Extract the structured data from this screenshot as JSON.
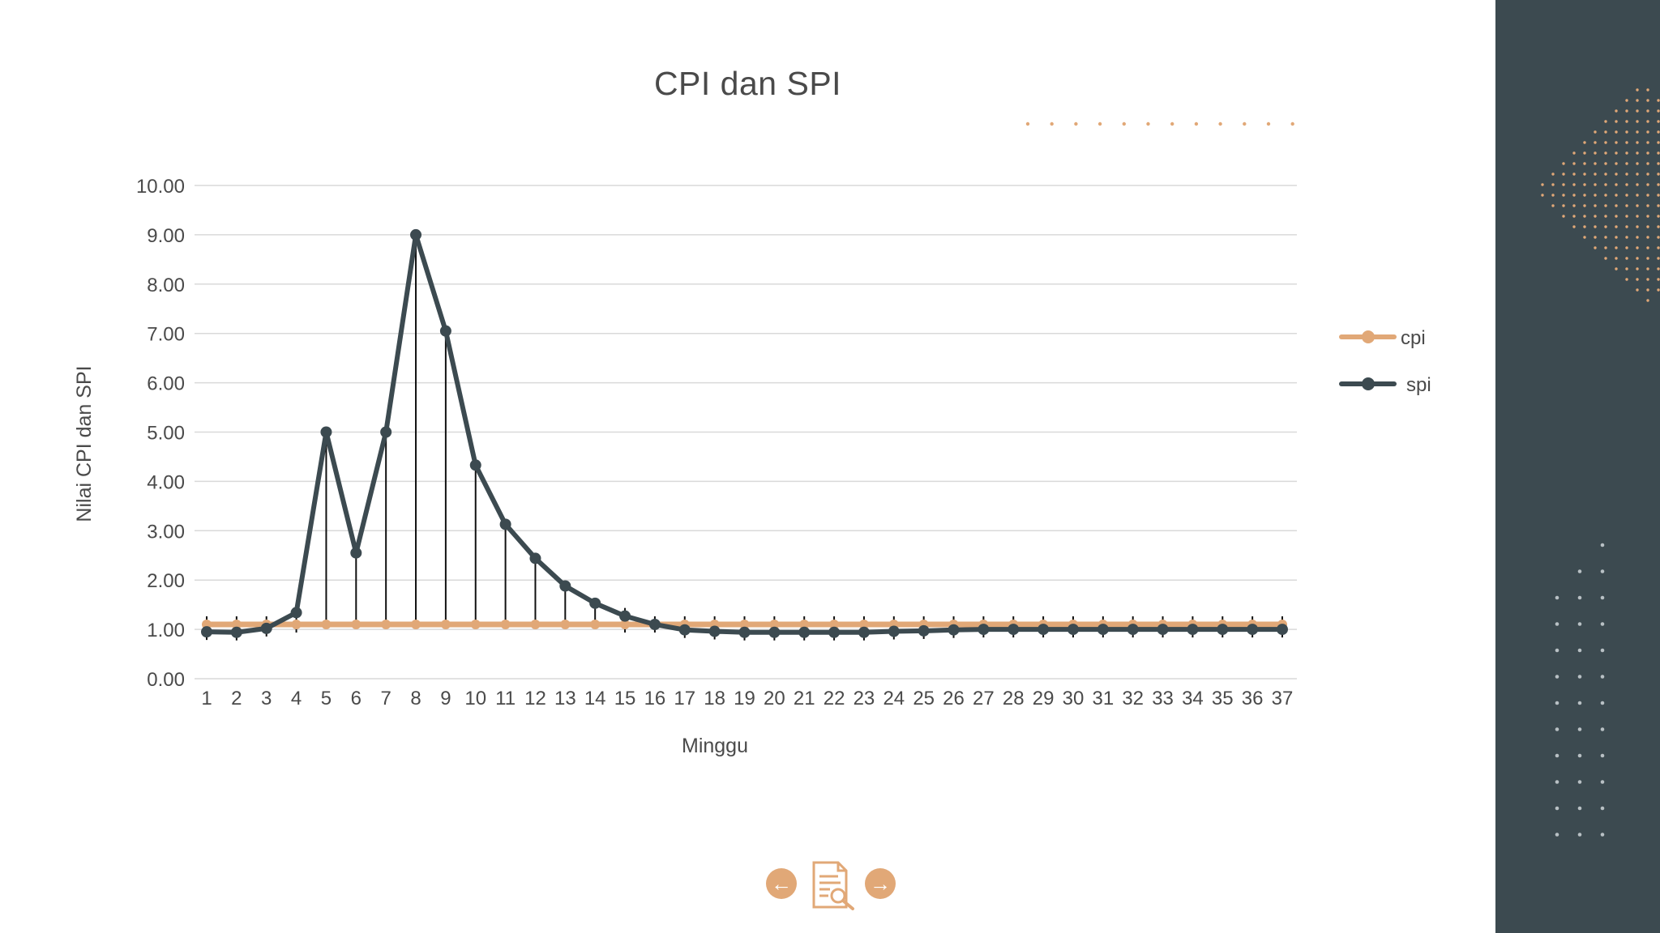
{
  "colors": {
    "cpi": "#e1a877",
    "spi": "#3c4a50",
    "panel": "#3c4a50",
    "accent": "#e1a877",
    "text": "#4a4a4a",
    "grid": "#d9d9d9"
  },
  "slide": {
    "nav": {
      "prev_icon": "arrow-left-icon",
      "prev_glyph": "←",
      "doc_icon": "document-search-icon",
      "next_icon": "arrow-right-icon",
      "next_glyph": "→"
    }
  },
  "chart_data": {
    "type": "line",
    "title": "CPI dan SPI",
    "xlabel": "Minggu",
    "ylabel": "Nilai CPI dan SPI",
    "ylim": [
      0,
      10
    ],
    "ytick_labels": [
      "0.00",
      "1.00",
      "2.00",
      "3.00",
      "4.00",
      "5.00",
      "6.00",
      "7.00",
      "8.00",
      "9.00",
      "10.00"
    ],
    "grid": true,
    "legend_position": "right",
    "drop_lines": true,
    "categories": [
      "1",
      "2",
      "3",
      "4",
      "5",
      "6",
      "7",
      "8",
      "9",
      "10",
      "11",
      "12",
      "13",
      "14",
      "15",
      "16",
      "17",
      "18",
      "19",
      "20",
      "21",
      "22",
      "23",
      "24",
      "25",
      "26",
      "27",
      "28",
      "29",
      "30",
      "31",
      "32",
      "33",
      "34",
      "35",
      "36",
      "37"
    ],
    "series": [
      {
        "name": "cpi",
        "values": [
          1.1,
          1.1,
          1.1,
          1.1,
          1.1,
          1.1,
          1.1,
          1.1,
          1.1,
          1.1,
          1.1,
          1.1,
          1.1,
          1.1,
          1.1,
          1.1,
          1.1,
          1.1,
          1.1,
          1.1,
          1.1,
          1.1,
          1.1,
          1.1,
          1.1,
          1.1,
          1.1,
          1.1,
          1.1,
          1.1,
          1.1,
          1.1,
          1.1,
          1.1,
          1.1,
          1.1,
          1.1
        ]
      },
      {
        "name": "spi",
        "values": [
          0.95,
          0.94,
          1.02,
          1.34,
          5.0,
          2.55,
          5.0,
          9.0,
          7.05,
          4.33,
          3.13,
          2.44,
          1.88,
          1.53,
          1.27,
          1.1,
          0.99,
          0.96,
          0.94,
          0.94,
          0.94,
          0.94,
          0.94,
          0.96,
          0.97,
          0.99,
          1.0,
          1.0,
          1.0,
          1.0,
          1.0,
          1.0,
          1.0,
          1.0,
          1.0,
          1.0,
          1.0
        ]
      }
    ]
  }
}
